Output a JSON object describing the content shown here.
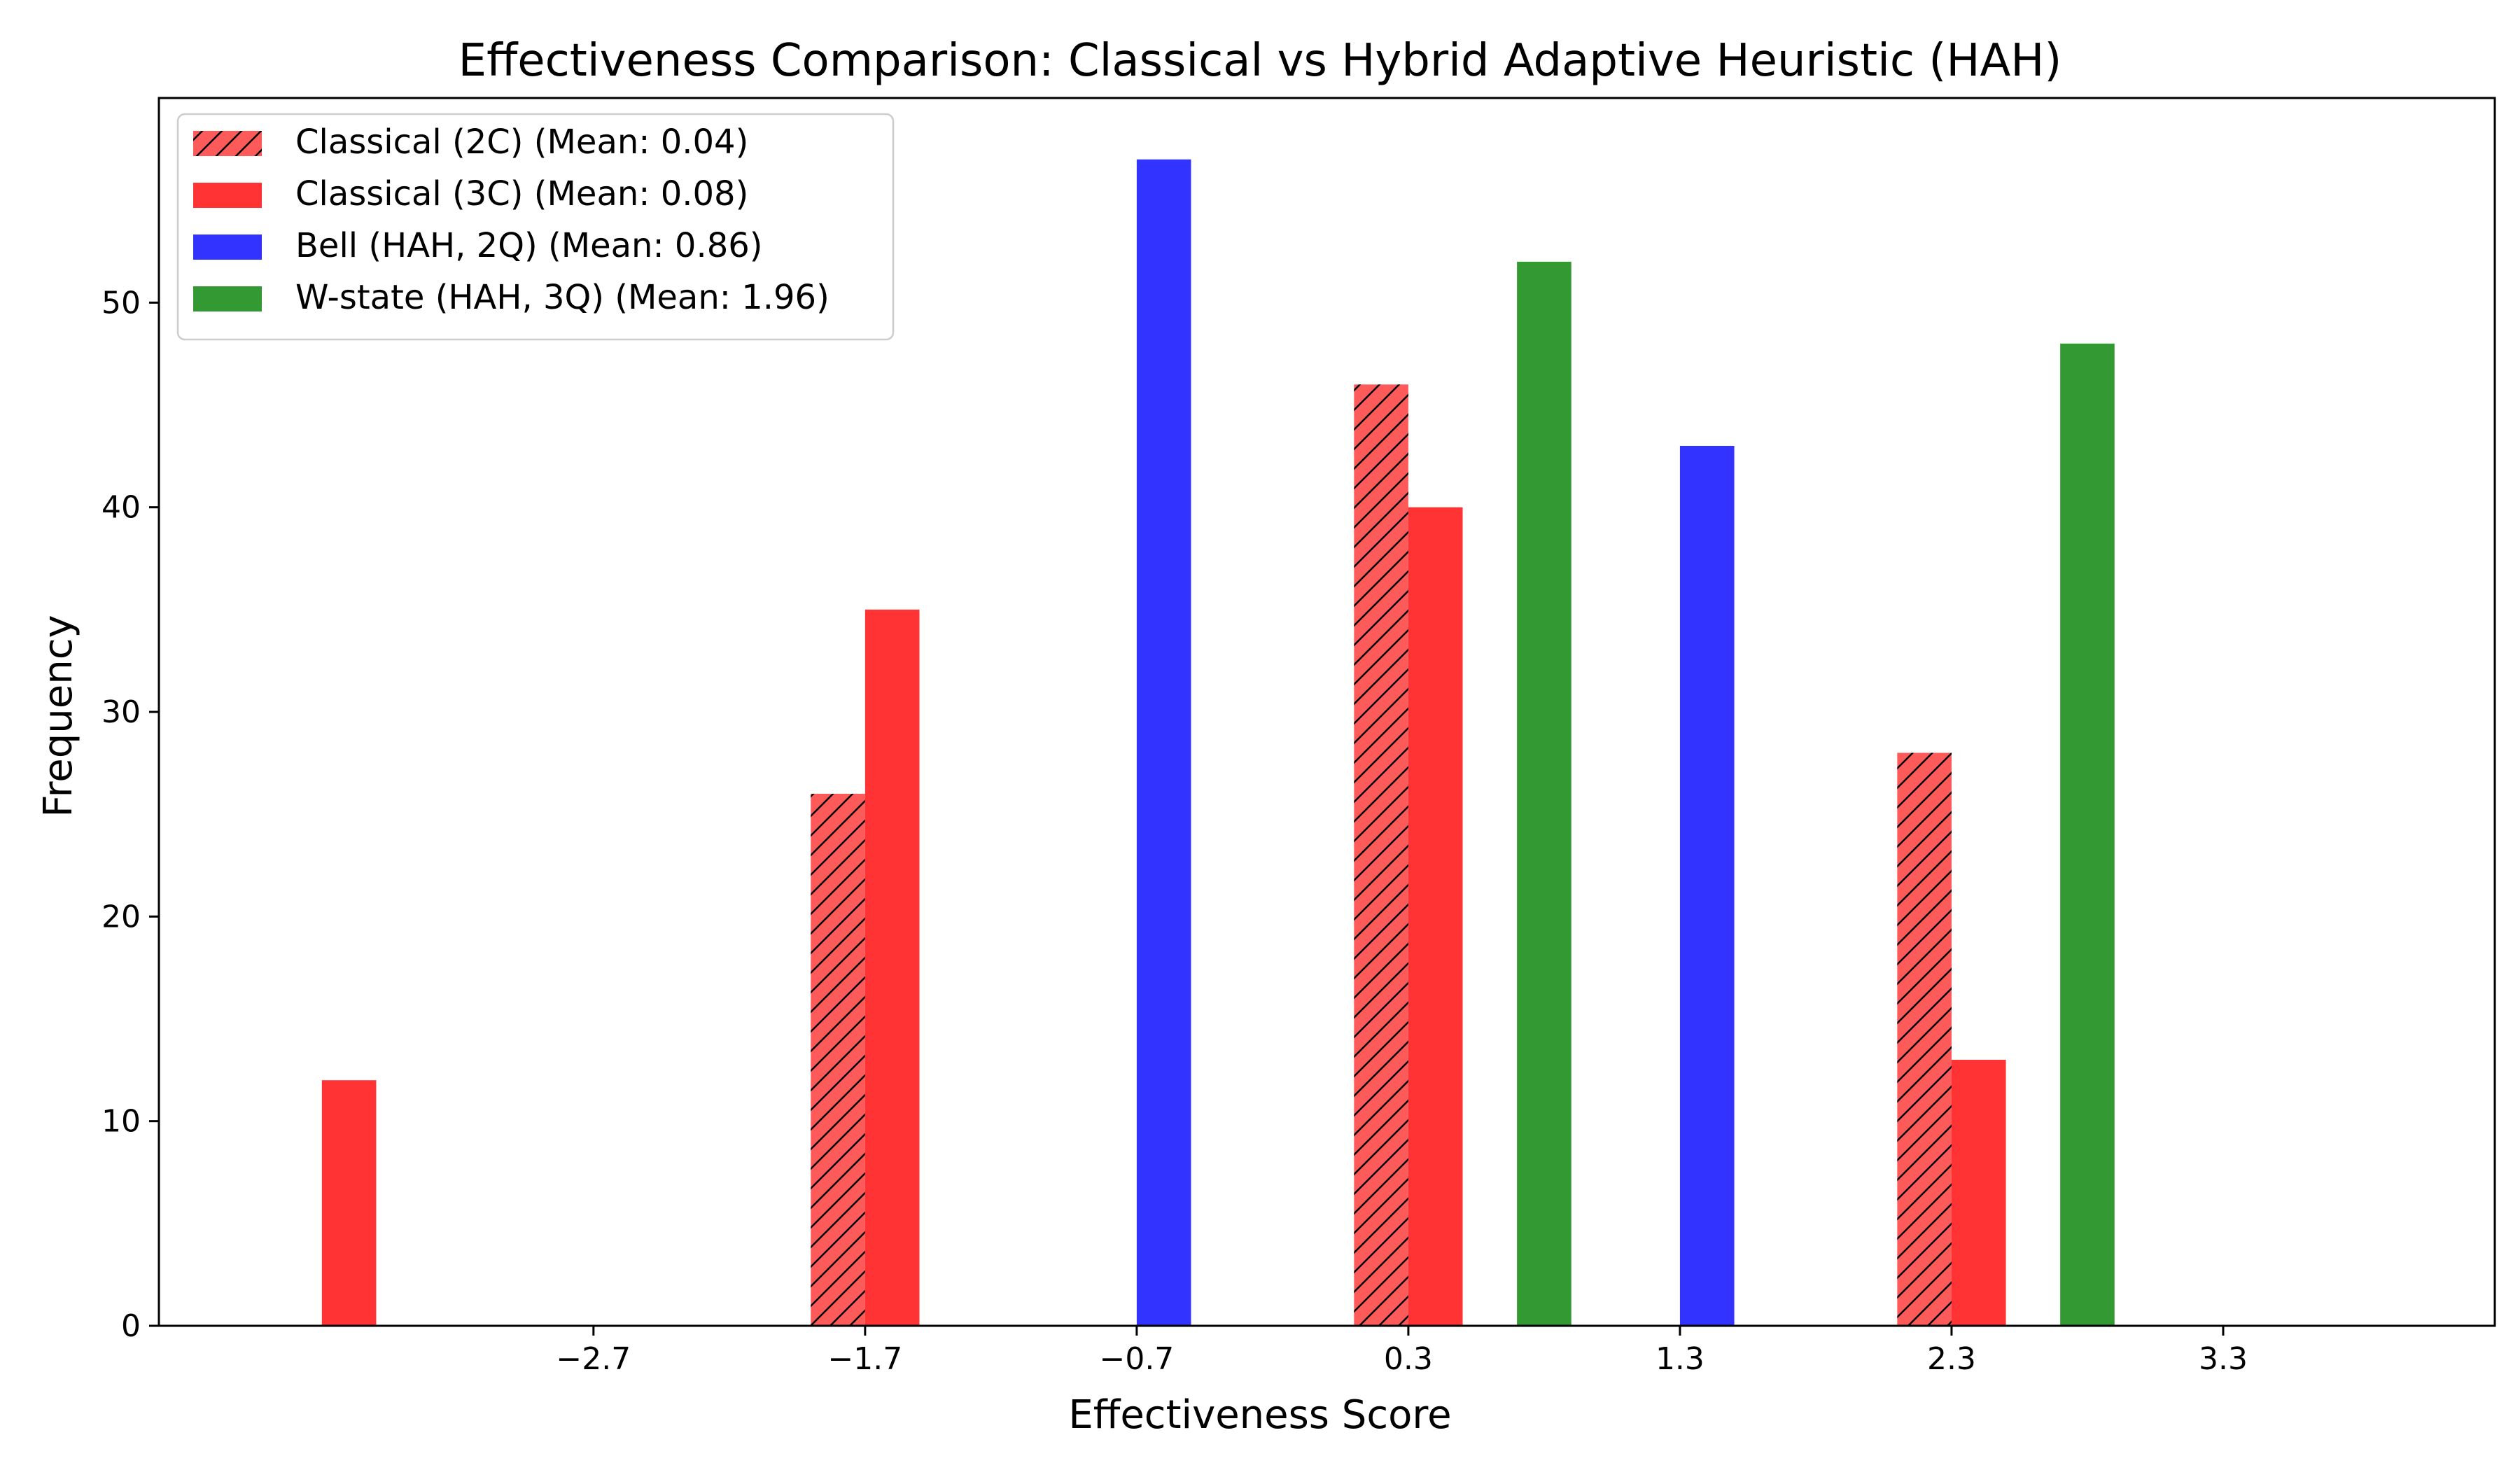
{
  "chart_data": {
    "type": "bar",
    "title": "Effectiveness Comparison: Classical vs Hybrid Adaptive Heuristic (HAH)",
    "xlabel": "Effectiveness Score",
    "ylabel": "Frequency",
    "xlim": [
      -4.3,
      4.3
    ],
    "ylim": [
      0,
      60
    ],
    "x_ticks": [
      -2.7,
      -1.7,
      -0.7,
      0.3,
      1.3,
      2.3,
      3.3
    ],
    "x_tick_labels": [
      "−2.7",
      "−1.7",
      "−0.7",
      "0.3",
      "1.3",
      "2.3",
      "3.3"
    ],
    "y_ticks": [
      0,
      10,
      20,
      30,
      40,
      50
    ],
    "y_tick_labels": [
      "0",
      "10",
      "20",
      "30",
      "40",
      "50"
    ],
    "bar_width": 0.2,
    "grid": false,
    "legend_position": "top-left",
    "series": [
      {
        "name": "Classical (2C) (Mean: 0.04)",
        "color": "#ff5a5a",
        "hatch": true,
        "points": [
          {
            "x": -1.8,
            "y": 26
          },
          {
            "x": 0.2,
            "y": 46
          },
          {
            "x": 2.2,
            "y": 28
          }
        ]
      },
      {
        "name": "Classical (3C) (Mean: 0.08)",
        "color": "#ff3333",
        "hatch": false,
        "points": [
          {
            "x": -3.6,
            "y": 12
          },
          {
            "x": -1.6,
            "y": 35
          },
          {
            "x": 0.4,
            "y": 40
          },
          {
            "x": 2.4,
            "y": 13
          }
        ]
      },
      {
        "name": "Bell (HAH, 2Q) (Mean: 0.86)",
        "color": "#3333ff",
        "hatch": false,
        "points": [
          {
            "x": -0.6,
            "y": 57
          },
          {
            "x": 1.4,
            "y": 43
          }
        ]
      },
      {
        "name": "W-state (HAH, 3Q) (Mean: 1.96)",
        "color": "#339933",
        "hatch": false,
        "points": [
          {
            "x": 0.8,
            "y": 52
          },
          {
            "x": 2.8,
            "y": 48
          }
        ]
      }
    ]
  }
}
